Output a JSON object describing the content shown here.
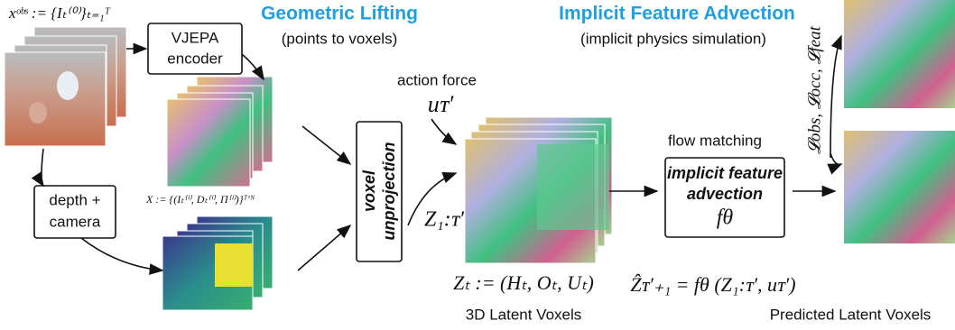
{
  "observation": {
    "label": "xᵒᵇˢ := {Iₜ⁽⁰⁾}ₜ₌₁ᵀ"
  },
  "encoder": {
    "line1": "VJEPA",
    "line2": "encoder"
  },
  "depth": {
    "line1": "depth +",
    "line2": "camera"
  },
  "geometry": {
    "definition": "X := {(Iₜ⁽ⁱ⁾, Dₜ⁽ⁱ⁾, Π⁽ⁱ⁾)}ᵀ'ᴺ"
  },
  "geometric_lifting": {
    "title": "Geometric Lifting",
    "subtitle": "(points to voxels)"
  },
  "feature_advection": {
    "title": "Implicit Feature Advection",
    "subtitle": "(implicit physics simulation)"
  },
  "unprojection": {
    "line1": "voxel",
    "line2": "unprojection",
    "output": "Z₁:ᴛ′"
  },
  "action": {
    "label": "action force",
    "symbol": "uᴛ′"
  },
  "latent": {
    "definition": "Zₜ := (Hₜ, Oₜ, Uₜ)",
    "caption": "3D Latent Voxels"
  },
  "advection": {
    "header": "flow matching",
    "line1": "implicit feature",
    "line2": "advection",
    "symbol": "fθ"
  },
  "prediction": {
    "equation": "Ẑᴛ′₊₁ = fθ (Z₁:ᴛ′, uᴛ′)",
    "caption": "Predicted Latent Voxels"
  },
  "losses": {
    "label": "𝓛obs, 𝓛occ, 𝓛feat"
  }
}
